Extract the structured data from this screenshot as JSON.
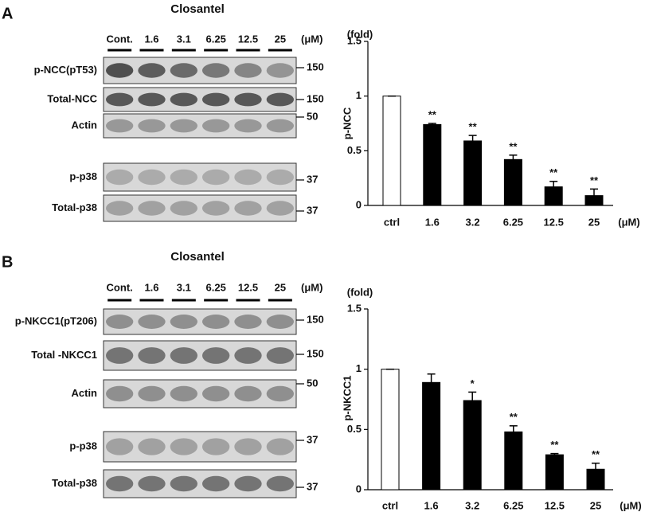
{
  "panels": [
    {
      "label": "A",
      "title": "Closantel",
      "lanes": [
        "Cont.",
        "1.6",
        "3.1",
        "6.25",
        "12.5",
        "25"
      ],
      "unit": "(μM)",
      "rows": [
        {
          "label": "p-NCC(pT53)",
          "mw": "150"
        },
        {
          "label": "Total-NCC",
          "mw": "150"
        },
        {
          "label": "Actin",
          "mw": "50"
        },
        {
          "label": "p-p38",
          "mw": "37"
        },
        {
          "label": "Total-p38",
          "mw": "37"
        }
      ]
    },
    {
      "label": "B",
      "title": "Closantel",
      "lanes": [
        "Cont.",
        "1.6",
        "3.1",
        "6.25",
        "12.5",
        "25"
      ],
      "unit": "(μM)",
      "rows": [
        {
          "label": "p-NKCC1(pT206)",
          "mw": "150"
        },
        {
          "label": "Total -NKCC1",
          "mw": "150"
        },
        {
          "label": "Actin",
          "mw": "50"
        },
        {
          "label": "p-p38",
          "mw": "37"
        },
        {
          "label": "Total-p38",
          "mw": "37"
        }
      ]
    }
  ],
  "chart_data": [
    {
      "type": "bar",
      "y_label": "p-NCC",
      "y_unit": "(fold)",
      "x_unit": "(μM)",
      "categories": [
        "ctrl",
        "1.6",
        "3.2",
        "6.25",
        "12.5",
        "25"
      ],
      "values": [
        1,
        0.74,
        0.59,
        0.42,
        0.17,
        0.09
      ],
      "errors": [
        0,
        0.01,
        0.05,
        0.04,
        0.05,
        0.06
      ],
      "annotations": [
        null,
        "**",
        "**",
        "**",
        "**",
        "**"
      ],
      "colors": [
        "#ffffff",
        "#000000",
        "#000000",
        "#000000",
        "#000000",
        "#000000"
      ],
      "ylim": [
        0,
        1.5
      ],
      "yticks": [
        0,
        0.5,
        1,
        1.5
      ]
    },
    {
      "type": "bar",
      "y_label": "p-NKCC1",
      "y_unit": "(fold)",
      "x_unit": "(μM)",
      "categories": [
        "ctrl",
        "1.6",
        "3.2",
        "6.25",
        "12.5",
        "25"
      ],
      "values": [
        1,
        0.89,
        0.74,
        0.48,
        0.29,
        0.17
      ],
      "errors": [
        0,
        0.07,
        0.07,
        0.05,
        0.01,
        0.05
      ],
      "annotations": [
        null,
        null,
        "*",
        "**",
        "**",
        "**"
      ],
      "colors": [
        "#ffffff",
        "#000000",
        "#000000",
        "#000000",
        "#000000",
        "#000000"
      ],
      "ylim": [
        0,
        1.5
      ],
      "yticks": [
        0,
        0.5,
        1,
        1.5
      ]
    }
  ]
}
